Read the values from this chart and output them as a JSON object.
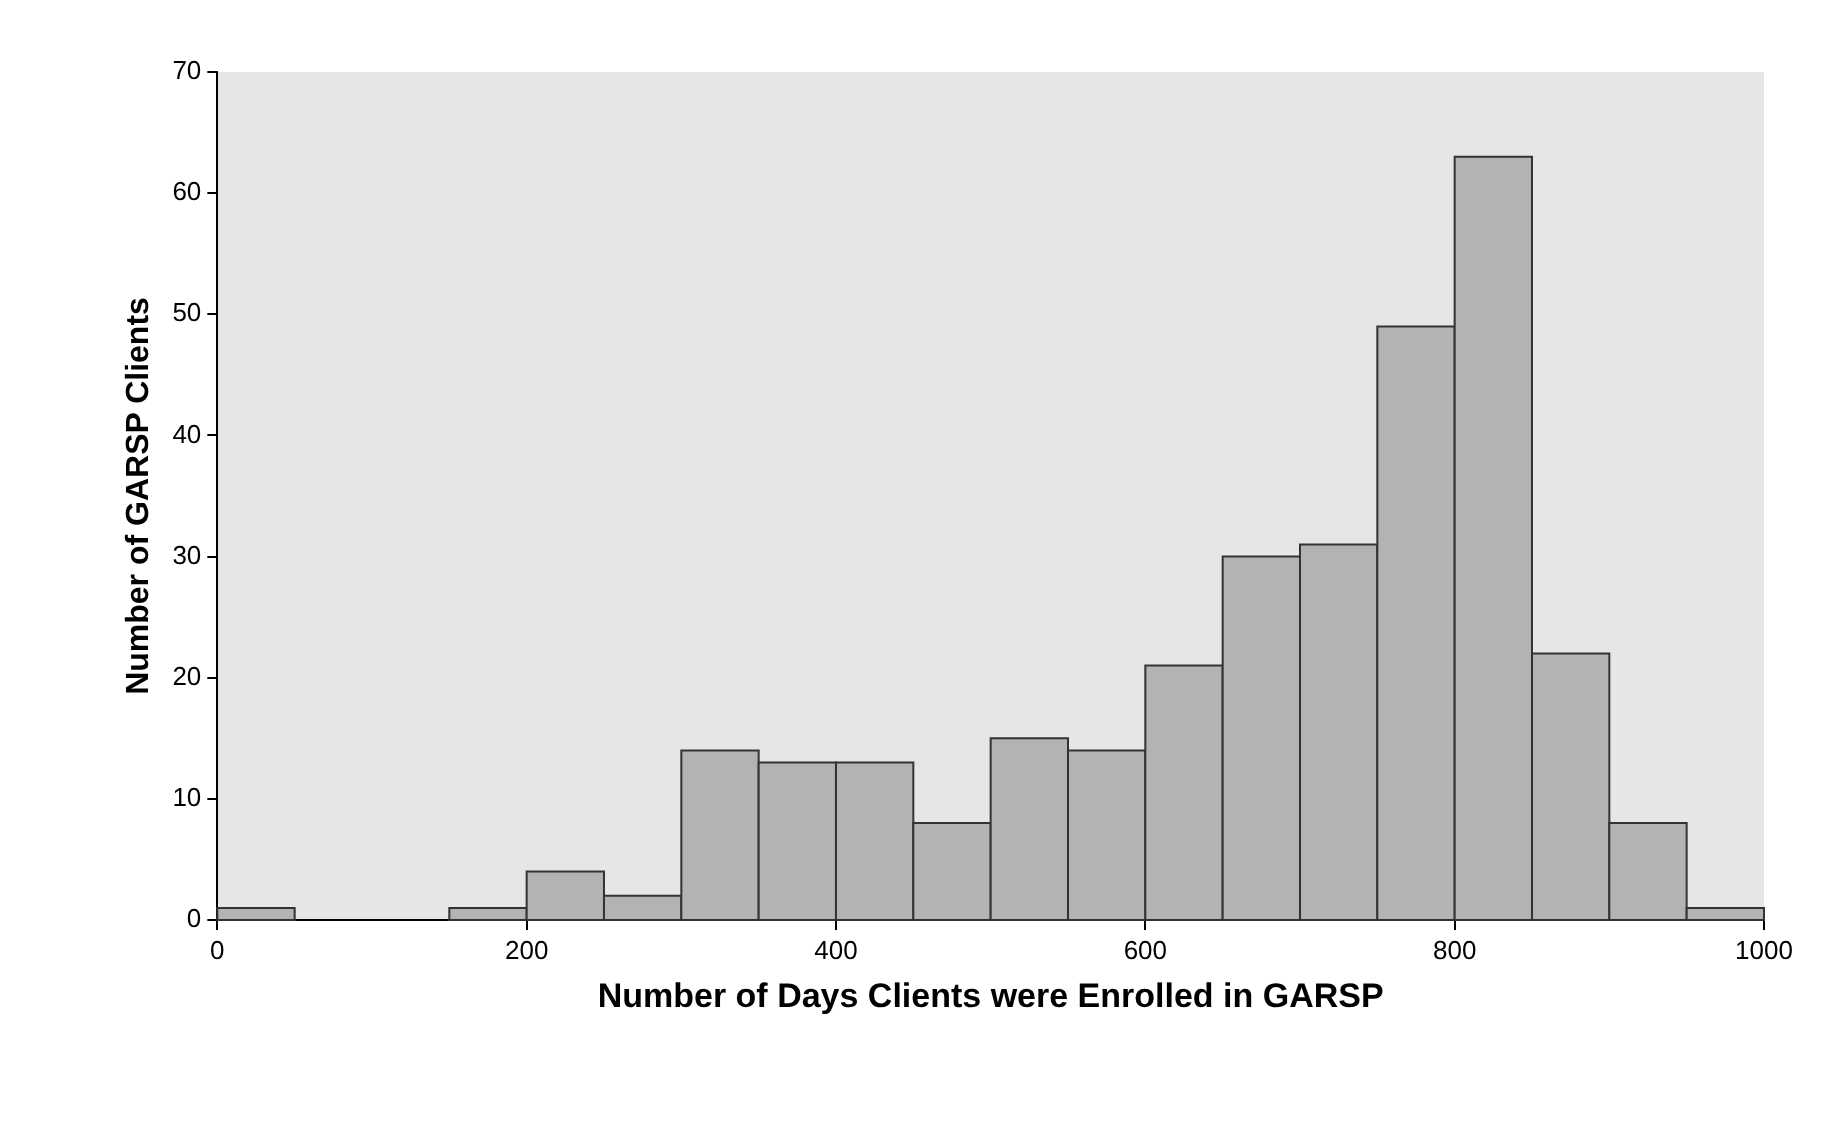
{
  "chart_data": {
    "type": "histogram",
    "xlabel": "Number of Days Clients were Enrolled in GARSP",
    "ylabel": "Number of GARSP Clients",
    "bins": [
      0,
      50,
      100,
      150,
      200,
      250,
      300,
      350,
      400,
      450,
      500,
      550,
      600,
      650,
      700,
      750,
      800,
      850,
      900,
      950,
      1000
    ],
    "values": [
      1,
      0,
      0,
      1,
      4,
      2,
      14,
      13,
      13,
      8,
      15,
      14,
      21,
      30,
      31,
      49,
      63,
      22,
      8,
      1
    ],
    "color": "#b3b3b3",
    "xlim": [
      0,
      1000
    ],
    "xticks": [
      0,
      200,
      400,
      600,
      800,
      {
        "value": 1000,
        "label": "1000"
      }
    ],
    "ylim": [
      0,
      70
    ],
    "yticks": [
      0,
      10,
      20,
      30,
      40,
      50,
      60,
      70
    ],
    "grid": false,
    "legend": false
  }
}
